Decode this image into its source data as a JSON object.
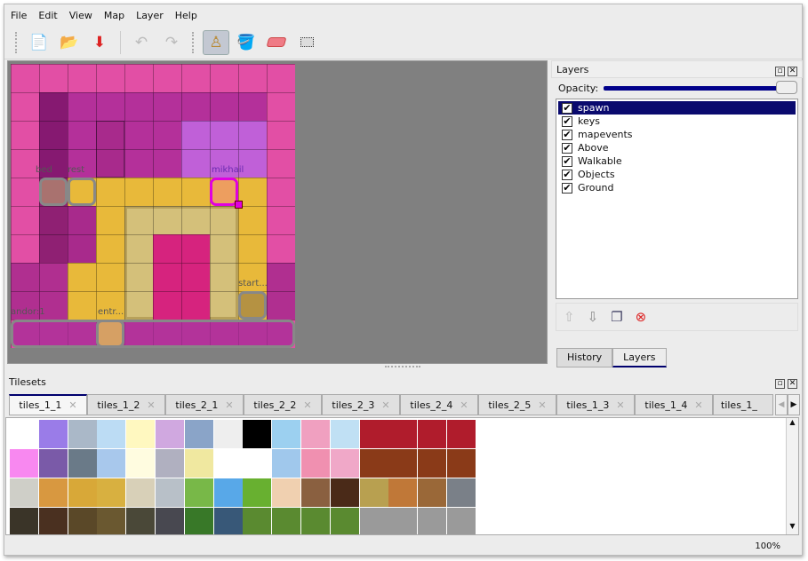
{
  "menu": [
    "File",
    "Edit",
    "View",
    "Map",
    "Layer",
    "Help"
  ],
  "toolbar": {
    "tools": [
      "new-icon",
      "open-icon",
      "save-icon",
      "undo-icon",
      "redo-icon",
      "stamp-brush-icon",
      "bucket-fill-icon",
      "eraser-icon",
      "rect-select-icon"
    ],
    "active_tool": "stamp-brush-icon"
  },
  "map": {
    "objects": [
      {
        "name": "bed"
      },
      {
        "name": "rest"
      },
      {
        "name": "mikhail"
      },
      {
        "name": "start..."
      },
      {
        "name": "andor:1"
      },
      {
        "name": "entr..."
      }
    ]
  },
  "layers_dock": {
    "title": "Layers",
    "opacity_label": "Opacity:",
    "opacity": 1.0,
    "layers": [
      {
        "name": "spawn",
        "visible": true,
        "selected": true
      },
      {
        "name": "keys",
        "visible": true
      },
      {
        "name": "mapevents",
        "visible": true
      },
      {
        "name": "Above",
        "visible": true
      },
      {
        "name": "Walkable",
        "visible": true
      },
      {
        "name": "Objects",
        "visible": true
      },
      {
        "name": "Ground",
        "visible": true
      }
    ],
    "tabs": [
      "History",
      "Layers"
    ],
    "active_tab": "Layers"
  },
  "tilesets_dock": {
    "title": "Tilesets",
    "tabs": [
      "tiles_1_1",
      "tiles_1_2",
      "tiles_2_1",
      "tiles_2_2",
      "tiles_2_3",
      "tiles_2_4",
      "tiles_2_5",
      "tiles_1_3",
      "tiles_1_4",
      "tiles_1_"
    ],
    "active_tab": "tiles_1_1"
  },
  "status": {
    "zoom": "100%"
  },
  "colors": {
    "selection": "#0a0a6e",
    "map_tint": "#e24fa5",
    "floor": "#e8b93a",
    "highlight_object": "#e000e0"
  }
}
